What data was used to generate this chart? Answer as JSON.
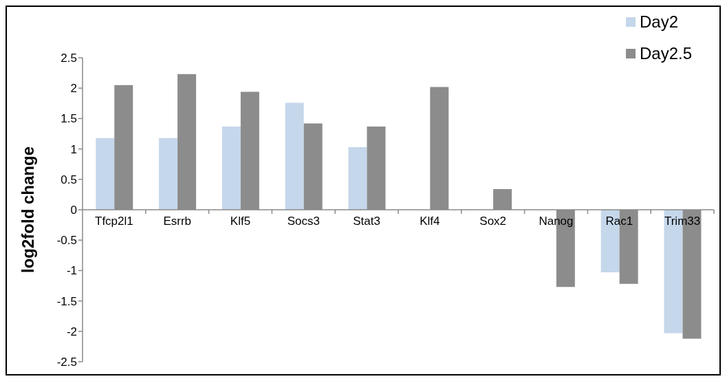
{
  "chart_data": {
    "type": "bar",
    "ylabel": "log2fold change",
    "categories": [
      "Tfcp2l1",
      "Esrrb",
      "Klf5",
      "Socs3",
      "Stat3",
      "Klf4",
      "Sox2",
      "Nanog",
      "Rac1",
      "Trim33"
    ],
    "series": [
      {
        "name": "Day2",
        "color": "#c5d7eb",
        "values": [
          1.18,
          1.18,
          1.37,
          1.76,
          1.03,
          null,
          null,
          null,
          -1.03,
          -2.03
        ]
      },
      {
        "name": "Day2.5",
        "color": "#8c8c8c",
        "values": [
          2.05,
          2.23,
          1.94,
          1.42,
          1.37,
          2.02,
          0.34,
          -1.27,
          -1.22,
          -2.12
        ]
      }
    ],
    "ylim": [
      -2.5,
      2.5
    ],
    "yticks": [
      -2.5,
      -2,
      -1.5,
      -1,
      -0.5,
      0,
      0.5,
      1,
      1.5,
      2,
      2.5
    ],
    "grid": false,
    "legend": "top right"
  }
}
